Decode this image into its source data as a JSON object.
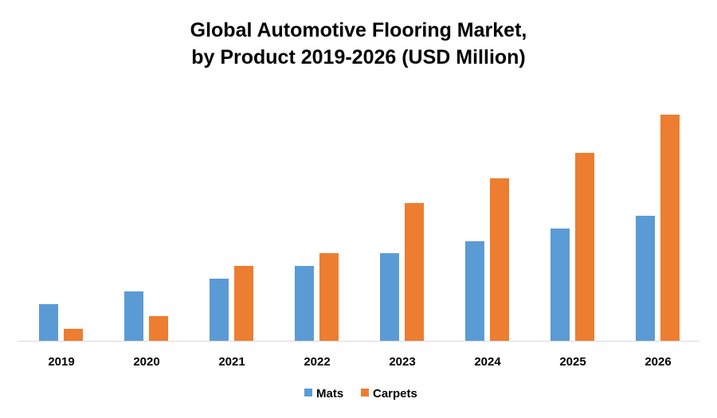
{
  "chart_data": {
    "type": "bar",
    "title_lines": [
      "Global Automotive Flooring Market,",
      "by Product 2019-2026 (USD Million)"
    ],
    "categories": [
      "2019",
      "2020",
      "2021",
      "2022",
      "2023",
      "2024",
      "2025",
      "2026"
    ],
    "series": [
      {
        "name": "Mats",
        "color": "#5B9BD5",
        "values": [
          46,
          62,
          78,
          94,
          110,
          125,
          141,
          157
        ]
      },
      {
        "name": "Carpets",
        "color": "#ED7D31",
        "values": [
          15,
          31,
          94,
          110,
          173,
          204,
          236,
          284
        ]
      }
    ],
    "xlabel": "",
    "ylabel": "",
    "ylim": [
      0,
      300
    ],
    "y_axis_shown": false,
    "grid": false,
    "legend": "bottom"
  }
}
